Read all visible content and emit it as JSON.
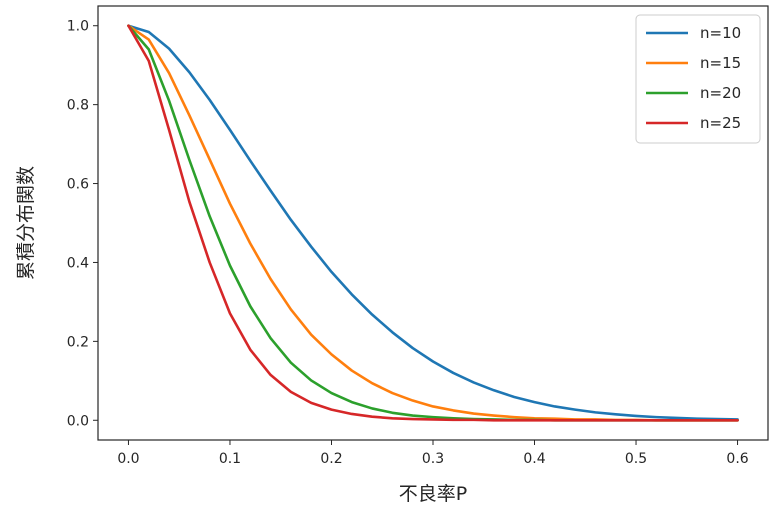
{
  "chart_data": {
    "type": "line",
    "title": "",
    "xlabel": "不良率P",
    "ylabel": "累積分布関数",
    "xlim": [
      -0.03,
      0.63
    ],
    "ylim": [
      -0.05,
      1.05
    ],
    "xticks": [
      0.0,
      0.1,
      0.2,
      0.3,
      0.4,
      0.5,
      0.6
    ],
    "xtick_labels": [
      "0.0",
      "0.1",
      "0.2",
      "0.3",
      "0.4",
      "0.5",
      "0.6"
    ],
    "yticks": [
      0.0,
      0.2,
      0.4,
      0.6,
      0.8,
      1.0
    ],
    "ytick_labels": [
      "0.0",
      "0.2",
      "0.4",
      "0.6",
      "0.8",
      "1.0"
    ],
    "grid": false,
    "legend_position": "top-right",
    "x": [
      0.0,
      0.02,
      0.04,
      0.06,
      0.08,
      0.1,
      0.12,
      0.14,
      0.16,
      0.18,
      0.2,
      0.22,
      0.24,
      0.26,
      0.28,
      0.3,
      0.32,
      0.34,
      0.36,
      0.38,
      0.4,
      0.42,
      0.44,
      0.46,
      0.48,
      0.5,
      0.52,
      0.54,
      0.56,
      0.58,
      0.6
    ],
    "series": [
      {
        "name": "n=10",
        "color": "#1f77b4",
        "values": [
          1.0,
          0.984,
          0.942,
          0.882,
          0.812,
          0.736,
          0.658,
          0.582,
          0.508,
          0.44,
          0.376,
          0.319,
          0.268,
          0.223,
          0.183,
          0.149,
          0.12,
          0.096,
          0.076,
          0.059,
          0.046,
          0.035,
          0.027,
          0.02,
          0.015,
          0.011,
          0.008,
          0.006,
          0.004,
          0.003,
          0.002
        ]
      },
      {
        "name": "n=15",
        "color": "#ff7f0e",
        "values": [
          1.0,
          0.965,
          0.88,
          0.773,
          0.661,
          0.549,
          0.448,
          0.358,
          0.281,
          0.217,
          0.167,
          0.126,
          0.094,
          0.069,
          0.05,
          0.035,
          0.025,
          0.017,
          0.012,
          0.008,
          0.005,
          0.004,
          0.002,
          0.002,
          0.001,
          0.001,
          0.0,
          0.0,
          0.0,
          0.0,
          0.0
        ]
      },
      {
        "name": "n=20",
        "color": "#2ca02c",
        "values": [
          1.0,
          0.94,
          0.81,
          0.66,
          0.517,
          0.392,
          0.289,
          0.208,
          0.146,
          0.101,
          0.069,
          0.046,
          0.03,
          0.019,
          0.012,
          0.008,
          0.005,
          0.003,
          0.002,
          0.001,
          0.001,
          0.0,
          0.0,
          0.0,
          0.0,
          0.0,
          0.0,
          0.0,
          0.0,
          0.0,
          0.0
        ]
      },
      {
        "name": "n=25",
        "color": "#d62728",
        "values": [
          1.0,
          0.911,
          0.736,
          0.554,
          0.4,
          0.271,
          0.179,
          0.115,
          0.072,
          0.044,
          0.027,
          0.016,
          0.009,
          0.005,
          0.003,
          0.002,
          0.001,
          0.001,
          0.0,
          0.0,
          0.0,
          0.0,
          0.0,
          0.0,
          0.0,
          0.0,
          0.0,
          0.0,
          0.0,
          0.0,
          0.0
        ]
      }
    ]
  }
}
